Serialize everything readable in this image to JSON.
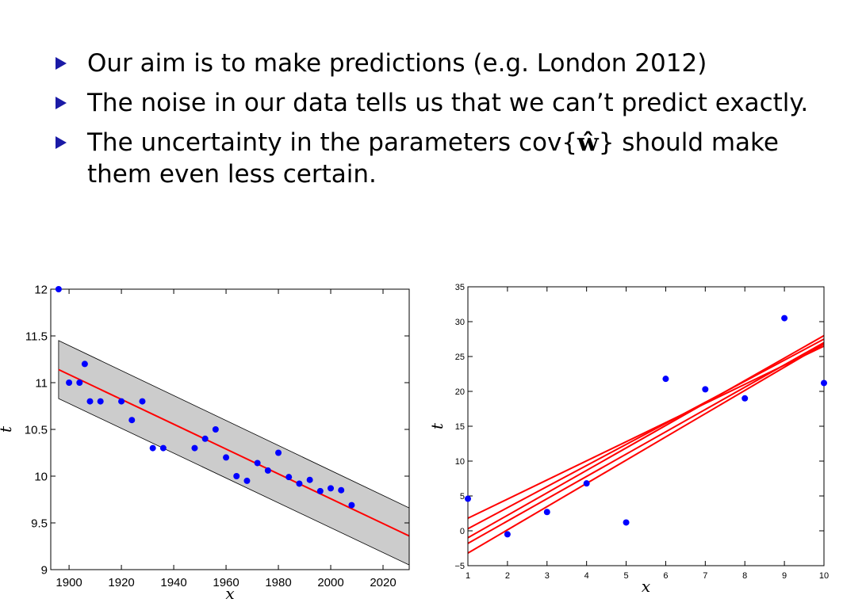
{
  "bullets": [
    {
      "text": "Our aim is to make predictions (e.g. London 2012)"
    },
    {
      "text": "The noise in our data tells us that we can’t predict exactly."
    },
    {
      "pre": "The uncertainty in the parameters cov{",
      "math": "ŵ",
      "post": "} should make them even less certain."
    }
  ],
  "colors": {
    "points": "#0000ff",
    "fit": "#ff0000",
    "band": "#cccccc",
    "bullet": "#1a1aa6"
  },
  "chart_data": [
    {
      "type": "scatter",
      "title": "",
      "xlabel": "x",
      "ylabel": "t",
      "xlim": [
        1893,
        2030
      ],
      "ylim": [
        9,
        12
      ],
      "xticks": [
        1900,
        1920,
        1940,
        1960,
        1980,
        2000,
        2020
      ],
      "yticks": [
        9,
        9.5,
        10,
        10.5,
        11,
        11.5,
        12
      ],
      "ytick_labels": [
        "9",
        "9.5",
        "10",
        "10.5",
        "11",
        "11.5",
        "12"
      ],
      "points": [
        [
          1896,
          12.0
        ],
        [
          1900,
          11.0
        ],
        [
          1904,
          11.0
        ],
        [
          1906,
          11.2
        ],
        [
          1908,
          10.8
        ],
        [
          1912,
          10.8
        ],
        [
          1920,
          10.8
        ],
        [
          1924,
          10.6
        ],
        [
          1928,
          10.8
        ],
        [
          1932,
          10.3
        ],
        [
          1936,
          10.3
        ],
        [
          1948,
          10.3
        ],
        [
          1952,
          10.4
        ],
        [
          1956,
          10.5
        ],
        [
          1960,
          10.2
        ],
        [
          1964,
          10.0
        ],
        [
          1968,
          9.95
        ],
        [
          1972,
          10.14
        ],
        [
          1976,
          10.06
        ],
        [
          1980,
          10.25
        ],
        [
          1984,
          9.99
        ],
        [
          1988,
          9.92
        ],
        [
          1992,
          9.96
        ],
        [
          1996,
          9.84
        ],
        [
          2000,
          9.87
        ],
        [
          2004,
          9.85
        ],
        [
          2008,
          9.69
        ]
      ],
      "fit_line": {
        "x": [
          1896,
          2030
        ],
        "y": [
          11.14,
          9.36
        ]
      },
      "band": {
        "upper": [
          11.45,
          9.66
        ],
        "lower": [
          10.83,
          9.05
        ]
      },
      "grid": false
    },
    {
      "type": "scatter",
      "title": "",
      "xlabel": "x",
      "ylabel": "t",
      "xlim": [
        1,
        10
      ],
      "ylim": [
        -5,
        35
      ],
      "xticks": [
        1,
        2,
        3,
        4,
        5,
        6,
        7,
        8,
        9,
        10
      ],
      "yticks": [
        -5,
        0,
        5,
        10,
        15,
        20,
        25,
        30,
        35
      ],
      "points": [
        [
          1,
          4.6
        ],
        [
          2,
          -0.5
        ],
        [
          3,
          2.7
        ],
        [
          4,
          6.8
        ],
        [
          5,
          1.2
        ],
        [
          6,
          21.8
        ],
        [
          7,
          20.3
        ],
        [
          8,
          19.0
        ],
        [
          9,
          30.5
        ],
        [
          10,
          21.2
        ]
      ],
      "lines": [
        {
          "y1": 1.8,
          "y10": 26.5
        },
        {
          "y1": 0.3,
          "y10": 27.5
        },
        {
          "y1": -1.0,
          "y10": 28.0
        },
        {
          "y1": -1.8,
          "y10": 27.0
        },
        {
          "y1": -3.2,
          "y10": 26.8
        }
      ],
      "grid": false
    }
  ]
}
